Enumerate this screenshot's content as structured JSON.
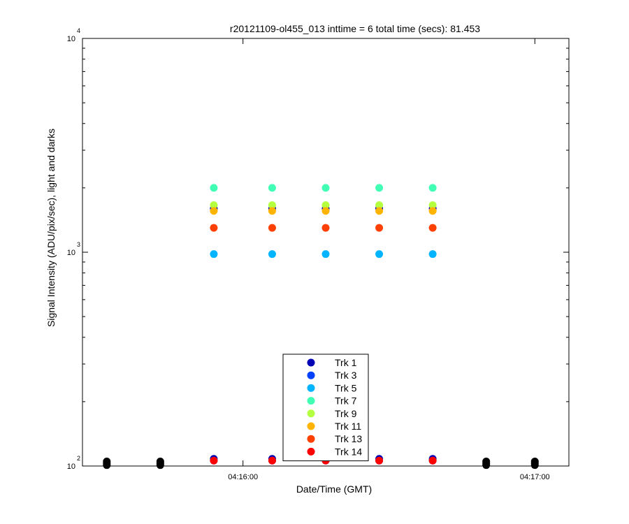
{
  "chart_data": {
    "type": "scatter",
    "title": "r20121109-ol455_013 inttime = 6 total time (secs): 81.453",
    "xlabel": "Date/Time (GMT)",
    "ylabel": "Signal Intensity (ADU/pix/sec), light and darks",
    "yscale": "log",
    "ylim": [
      100,
      10000
    ],
    "xlim": [
      "04:15:27",
      "04:17:07"
    ],
    "x_ticks": [
      {
        "time": "04:16:00",
        "label": "04:16:00"
      },
      {
        "time": "04:17:00",
        "label": "04:17:00"
      }
    ],
    "y_ticks": [
      {
        "value": 100,
        "base": "10",
        "exp": "2"
      },
      {
        "value": 1000,
        "base": "10",
        "exp": "3"
      },
      {
        "value": 10000,
        "base": "10",
        "exp": "4"
      }
    ],
    "grid": false,
    "legend_position": "bottom-center",
    "light_times": [
      "04:15:54",
      "04:16:06",
      "04:16:17",
      "04:16:28",
      "04:16:39"
    ],
    "dark_times": [
      "04:15:32",
      "04:15:43",
      "04:16:50",
      "04:17:00"
    ],
    "dark_color": "#000000",
    "dark_values": [
      101,
      103,
      105
    ],
    "series": [
      {
        "name": "Trk 1",
        "color": "#0000b4",
        "values": [
          1600,
          108,
          1600,
          108,
          1600,
          108,
          1600,
          108,
          1600,
          108
        ]
      },
      {
        "name": "Trk 3",
        "color": "#0040ff",
        "values": [
          106
        ]
      },
      {
        "name": "Trk 5",
        "color": "#00b4ff",
        "values": [
          980
        ]
      },
      {
        "name": "Trk 7",
        "color": "#40ffb4",
        "values": [
          2000
        ]
      },
      {
        "name": "Trk 9",
        "color": "#b4ff40",
        "values": [
          1660
        ]
      },
      {
        "name": "Trk 11",
        "color": "#ffb400",
        "values": [
          1560
        ]
      },
      {
        "name": "Trk 13",
        "color": "#ff4000",
        "values": [
          1300
        ]
      },
      {
        "name": "Trk 14",
        "color": "#ff0000",
        "values": [
          106
        ]
      }
    ]
  }
}
